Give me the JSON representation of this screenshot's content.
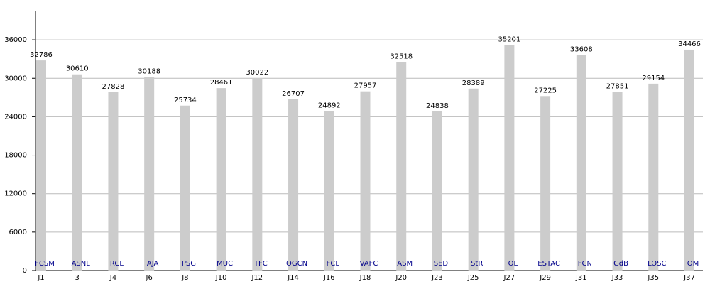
{
  "chart_data": {
    "type": "bar",
    "categories": [
      "J1",
      "3",
      "J4",
      "J6",
      "J8",
      "J10",
      "J12",
      "J14",
      "J16",
      "J18",
      "J20",
      "J23",
      "J25",
      "J27",
      "J29",
      "J31",
      "J33",
      "J35",
      "J37"
    ],
    "bar_labels": [
      "FCSM",
      "ASNL",
      "RCL",
      "AJA",
      "PSG",
      "MUC",
      "TFC",
      "OGCN",
      "FCL",
      "VAFC",
      "ASM",
      "SED",
      "StR",
      "OL",
      "ESTAC",
      "FCN",
      "GdB",
      "LOSC",
      "OM"
    ],
    "values": [
      32786,
      30610,
      27828,
      30188,
      25734,
      28461,
      30022,
      26707,
      24892,
      27957,
      32518,
      24838,
      28389,
      35201,
      27225,
      33608,
      27851,
      29154,
      34466
    ],
    "color": "#cccccc",
    "bar_label_color": "#00008b",
    "ylim": [
      0,
      40000
    ],
    "yticks": [
      0,
      6000,
      12000,
      18000,
      24000,
      30000,
      36000
    ],
    "grid": true
  }
}
